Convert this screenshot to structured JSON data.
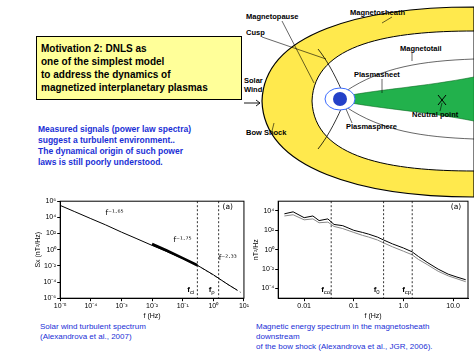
{
  "slide": {
    "title_lines": [
      "Motivation 2: DNLS as",
      "one of the simplest model",
      "to address the dynamics of",
      "magnetized interplanetary plasmas"
    ],
    "text_lines": [
      "Measured signals (power law spectra)",
      "suggest a turbulent environment..",
      "The dynamical origin of such power",
      "laws is still poorly understood."
    ],
    "diagram": {
      "labels": [
        "Magnetopause",
        "Cusp",
        "Solar Wind",
        "Bow Shock",
        "Magnetosheath",
        "Magnetotail",
        "Plasmasheet",
        "Neutral point",
        "Plasmasphere"
      ]
    },
    "captions": [
      [
        "Solar wind turbulent spectrum",
        "(Alexandrova et al., 2007)"
      ],
      [
        "Magnetic energy spectrum in the magnetosheath downstream",
        "of the bow  shock  (Alexandrova et al., JGR, 2006)."
      ]
    ]
  },
  "chart_data": [
    {
      "type": "line",
      "x_label": "f (Hz)",
      "y_label": "Sx (nT²/Hz)",
      "log": true,
      "grid": false,
      "xlim": [
        1e-05,
        10
      ],
      "xticks": [
        {
          "value": 1e-05,
          "label": "10⁻⁵"
        },
        {
          "value": 0.0001,
          "label": "10⁻⁴"
        },
        {
          "value": 0.001,
          "label": "10⁻³"
        },
        {
          "value": 0.01,
          "label": "10⁻²"
        },
        {
          "value": 0.1,
          "label": "10⁻¹"
        },
        {
          "value": 1,
          "label": "10⁰"
        },
        {
          "value": 10,
          "label": "10¹"
        }
      ],
      "ylim": [
        1e-06,
        1000000.0
      ],
      "yticks": [
        {
          "value": 1e-06,
          "label": "10⁻⁶"
        },
        {
          "value": 0.0001,
          "label": "10⁻⁴"
        },
        {
          "value": 0.01,
          "label": "10⁻²"
        },
        {
          "value": 1,
          "label": "10⁰"
        },
        {
          "value": 100,
          "label": "10²"
        },
        {
          "value": 10000.0,
          "label": "10⁴"
        },
        {
          "value": 1000000.0,
          "label": "10⁶"
        }
      ],
      "series": [
        {
          "color": "#000000",
          "line_style": "solid",
          "x": [
            1e-05,
            3e-05,
            0.0001,
            0.0003,
            0.001,
            0.003,
            0.01,
            0.03,
            0.1,
            0.3,
            1,
            3,
            6
          ],
          "values": [
            300000,
            50000,
            7000,
            1200,
            150,
            25,
            3.4,
            0.6,
            0.08,
            0.012,
            0.0008,
            5e-05,
            1e-05
          ]
        },
        {
          "color": "#000000",
          "line_style": "thick",
          "x": [
            0.01,
            0.03,
            0.1,
            0.3
          ],
          "values": [
            5,
            0.8,
            0.09,
            0.012
          ]
        },
        {
          "color": "#777777",
          "line_style": "dashed",
          "x": [
            0.3,
            1,
            3,
            8
          ],
          "values": [
            0.012,
            0.0007,
            5e-05,
            5e-06
          ]
        }
      ],
      "vlines": [
        {
          "x": 0.3,
          "label": "fci"
        },
        {
          "x": 1.5,
          "label": "fρ"
        }
      ],
      "annotations": [
        {
          "text": "f⁻¹·⁶⁵",
          "x": 0.0003,
          "y": 20000
        },
        {
          "text": "f⁻¹·⁷⁵",
          "x": 0.05,
          "y": 10
        },
        {
          "text": "f⁻²·³³",
          "x": 1.5,
          "y": 0.05
        },
        {
          "text": "(a)",
          "x": 2,
          "y": 100000
        }
      ]
    },
    {
      "type": "line",
      "x_label": "f (Hz)",
      "y_label": "nT²/Hz",
      "log": true,
      "grid": false,
      "xlim": [
        0.003,
        20
      ],
      "xticks": [
        0.01,
        0.1,
        {
          "value": 1,
          "label": "1.0"
        },
        {
          "value": 10,
          "label": "10.0"
        }
      ],
      "ylim": [
        1e-05,
        100000.0
      ],
      "yticks": [
        {
          "value": 0.0001,
          "label": "10⁻⁴"
        },
        {
          "value": 0.01,
          "label": "10⁻²"
        },
        {
          "value": 1,
          "label": "10⁰"
        },
        {
          "value": 100,
          "label": "10²"
        },
        {
          "value": 10000.0,
          "label": "10⁴"
        }
      ],
      "series": [
        {
          "color": "#000000",
          "line_style": "solid",
          "x": [
            0.004,
            0.006,
            0.01,
            0.015,
            0.02,
            0.03,
            0.04,
            0.06,
            0.1,
            0.15,
            0.2,
            0.3,
            0.4,
            0.6,
            1,
            1.5,
            2,
            3,
            5,
            8,
            12,
            18
          ],
          "values": [
            5000,
            8000,
            2000,
            3000,
            1000,
            1500,
            400,
            300,
            100,
            60,
            40,
            20,
            10,
            4,
            1.5,
            0.6,
            0.2,
            0.05,
            0.01,
            0.003,
            0.0015,
            0.0008
          ]
        },
        {
          "color": "#888888",
          "line_style": "solid",
          "x": [
            0.004,
            0.006,
            0.01,
            0.015,
            0.02,
            0.03,
            0.04,
            0.06,
            0.1,
            0.15,
            0.2,
            0.3,
            0.4,
            0.6,
            1,
            1.5,
            2,
            3,
            5,
            8,
            12,
            18
          ],
          "values": [
            3000,
            4000,
            1200,
            1500,
            600,
            700,
            250,
            150,
            60,
            30,
            20,
            10,
            5,
            2,
            0.7,
            0.3,
            0.1,
            0.03,
            0.006,
            0.002,
            0.001,
            0.0005
          ]
        }
      ],
      "vlines": [
        {
          "x": 0.035,
          "label": "fcoi"
        },
        {
          "x": 0.4,
          "label": "f0"
        },
        {
          "x": 1.5,
          "label": "fcp"
        }
      ],
      "annotations": [
        {
          "text": "(a)",
          "x": 9,
          "y": 15000
        }
      ]
    }
  ]
}
